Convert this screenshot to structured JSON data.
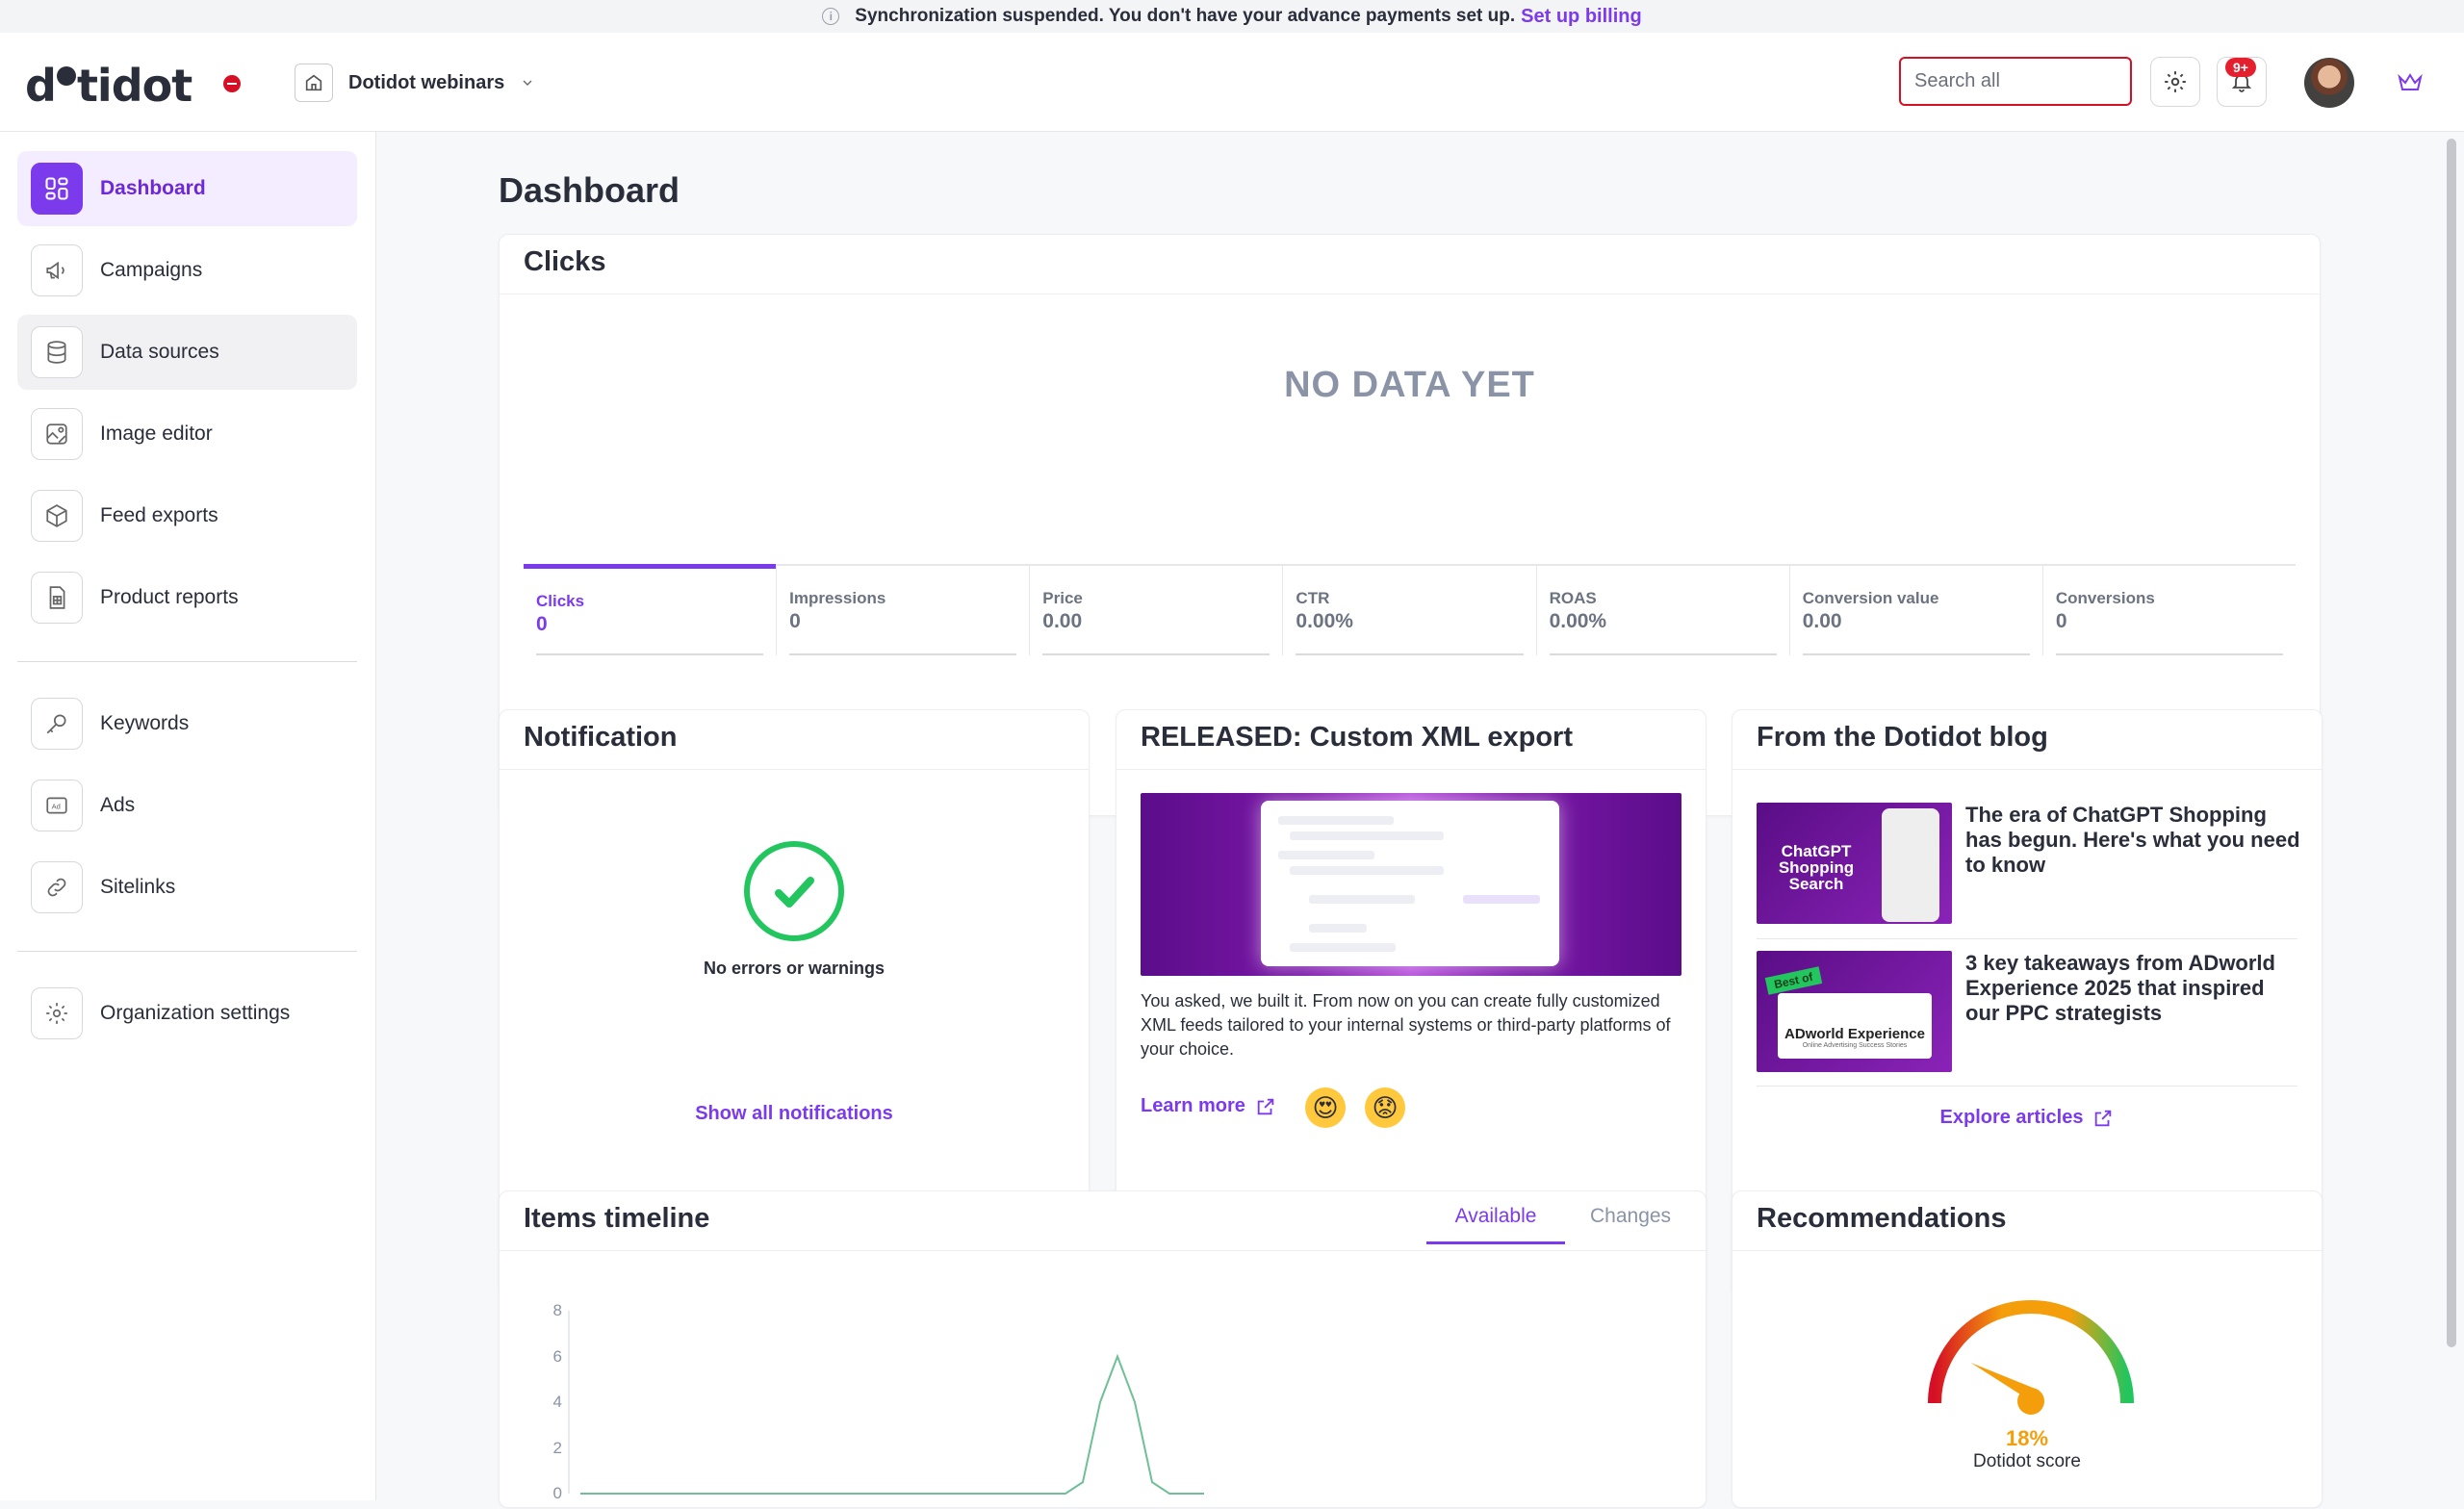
{
  "banner": {
    "message": "Synchronization suspended. You don't have your advance payments set up.",
    "link": "Set up billing"
  },
  "header": {
    "logo": "dotidot",
    "workspace": "Dotidot webinars",
    "search_placeholder": "Search all",
    "notifications_badge": "9+"
  },
  "sidebar": {
    "items": [
      {
        "label": "Dashboard",
        "icon": "dashboard-icon"
      },
      {
        "label": "Campaigns",
        "icon": "megaphone-icon"
      },
      {
        "label": "Data sources",
        "icon": "database-icon"
      },
      {
        "label": "Image editor",
        "icon": "image-edit-icon"
      },
      {
        "label": "Feed exports",
        "icon": "box-export-icon"
      },
      {
        "label": "Product reports",
        "icon": "report-icon"
      },
      {
        "label": "Keywords",
        "icon": "key-icon"
      },
      {
        "label": "Ads",
        "icon": "ad-icon"
      },
      {
        "label": "Sitelinks",
        "icon": "link-icon"
      },
      {
        "label": "Organization settings",
        "icon": "gear-icon"
      }
    ]
  },
  "page": {
    "title": "Dashboard"
  },
  "clicks_card": {
    "title": "Clicks",
    "empty_text": "NO DATA YET",
    "metrics": [
      {
        "label": "Clicks",
        "value": "0"
      },
      {
        "label": "Impressions",
        "value": "0"
      },
      {
        "label": "Price",
        "value": "0.00"
      },
      {
        "label": "CTR",
        "value": "0.00%"
      },
      {
        "label": "ROAS",
        "value": "0.00%"
      },
      {
        "label": "Conversion value",
        "value": "0.00"
      },
      {
        "label": "Conversions",
        "value": "0"
      }
    ]
  },
  "notification_card": {
    "title": "Notification",
    "status": "No errors or warnings",
    "link": "Show all notifications"
  },
  "release_card": {
    "title": "RELEASED: Custom XML export",
    "text": "You asked, we built it. From now on you can create fully customized XML feeds tailored to your internal systems or third-party platforms of your choice.",
    "link": "Learn more"
  },
  "blog_card": {
    "title": "From the Dotidot blog",
    "articles": [
      {
        "title": "The era of ChatGPT Shopping has begun. Here's what you need to know",
        "thumb_text": "ChatGPT Shopping Search"
      },
      {
        "title": "3 key takeaways from ADworld Experience 2025 that inspired our PPC strategists",
        "thumb_text": "ADworld Experience",
        "thumb_badge": "Best of",
        "thumb_sub": "Online Advertising Success Stories"
      }
    ],
    "link": "Explore articles"
  },
  "timeline_card": {
    "title": "Items timeline",
    "tabs": [
      "Available",
      "Changes"
    ]
  },
  "recommendations_card": {
    "title": "Recommendations",
    "score": "18%",
    "score_label": "Dotidot score",
    "score_fraction": 0.18
  },
  "chart_data": {
    "type": "line",
    "title": "",
    "xlabel": "",
    "ylabel": "",
    "ylim": [
      0,
      8
    ],
    "yticks": [
      "8",
      "6",
      "4",
      "2",
      "0"
    ],
    "series": [
      {
        "values": [
          0,
          0,
          0,
          0,
          0,
          0,
          0,
          0,
          0,
          0,
          0,
          0,
          0,
          0,
          0,
          0,
          0,
          0,
          0,
          0,
          0,
          0,
          0,
          0,
          0,
          0,
          0,
          0,
          0,
          0.5,
          4,
          6,
          4,
          0.5,
          0,
          0,
          0
        ]
      }
    ],
    "color": "#6fbf97"
  }
}
